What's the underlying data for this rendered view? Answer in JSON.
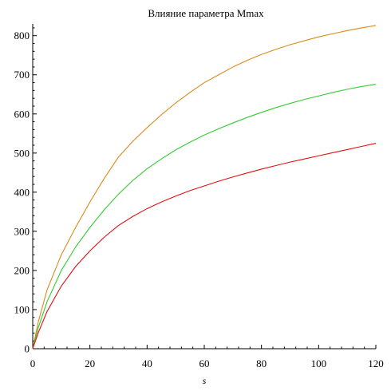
{
  "chart_data": {
    "type": "line",
    "title": "Влияние параметра Mmax",
    "xlabel": "s",
    "ylabel": "",
    "xlim": [
      0,
      120
    ],
    "ylim": [
      0,
      830
    ],
    "x_ticks": [
      "0",
      "20",
      "40",
      "60",
      "80",
      "100",
      "120"
    ],
    "y_ticks": [
      "0",
      "100",
      "200",
      "300",
      "400",
      "500",
      "600",
      "700",
      "800"
    ],
    "grid": false,
    "legend": "none",
    "x": [
      0,
      2,
      5,
      10,
      15,
      20,
      25,
      30,
      35,
      40,
      45,
      50,
      55,
      60,
      65,
      70,
      75,
      80,
      85,
      90,
      95,
      100,
      105,
      110,
      115,
      120
    ],
    "series": [
      {
        "color": "#d98a1a",
        "values": [
          0,
          70,
          150,
          240,
          310,
          375,
          435,
          490,
          530,
          565,
          598,
          628,
          655,
          680,
          700,
          720,
          737,
          752,
          765,
          777,
          787,
          797,
          805,
          813,
          820,
          826
        ]
      },
      {
        "color": "#33cc33",
        "values": [
          0,
          55,
          120,
          200,
          260,
          310,
          355,
          395,
          430,
          460,
          485,
          508,
          528,
          546,
          562,
          577,
          591,
          604,
          616,
          627,
          637,
          646,
          655,
          663,
          670,
          676
        ]
      },
      {
        "color": "#e01010",
        "values": [
          0,
          42,
          95,
          160,
          210,
          250,
          285,
          315,
          338,
          358,
          375,
          390,
          404,
          416,
          428,
          439,
          449,
          459,
          468,
          477,
          485,
          493,
          501,
          509,
          517,
          525
        ]
      }
    ]
  }
}
